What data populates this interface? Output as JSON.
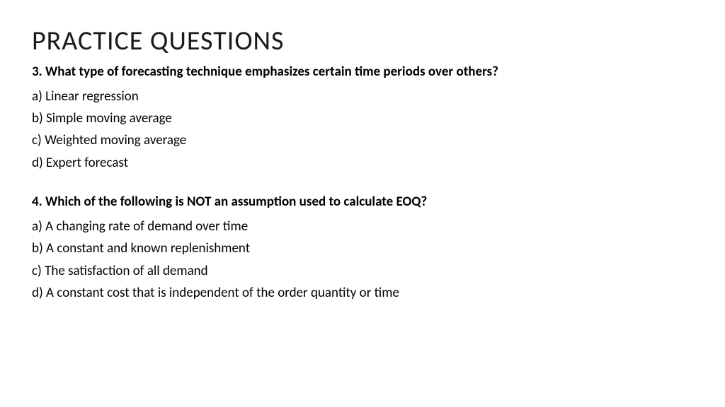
{
  "title": "PRACTICE QUESTIONS",
  "questions": [
    {
      "prompt": "3. What type of forecasting technique emphasizes certain time periods over others?",
      "options": [
        "a) Linear regression",
        "b) Simple moving average",
        "c) Weighted moving average",
        "d) Expert forecast"
      ]
    },
    {
      "prompt": "4. Which of the following is NOT an assumption used to calculate EOQ?",
      "options": [
        "a) A changing rate of demand over time",
        "b) A constant and known replenishment",
        "c) The satisfaction of all demand",
        "d) A constant cost that is independent of the order quantity or time"
      ]
    }
  ],
  "styling": {
    "background_color": "#ffffff",
    "text_color": "#000000",
    "title_fontsize": 38,
    "title_weight": 400,
    "body_fontsize": 19,
    "question_weight": 700,
    "option_weight": 400,
    "font_family": "Calibri"
  }
}
